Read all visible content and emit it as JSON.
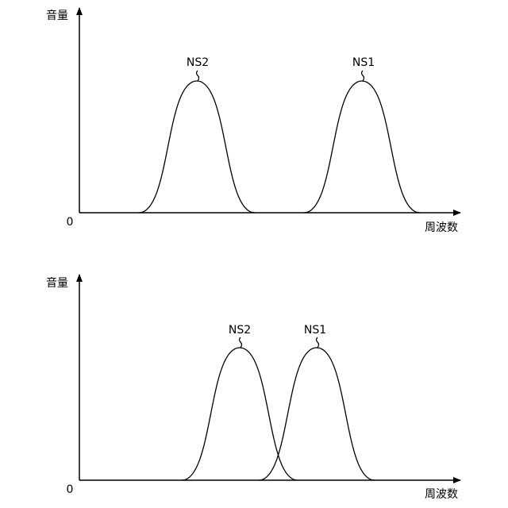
{
  "panels": [
    {
      "y_label": "音量",
      "x_label": "周波数",
      "origin": "0",
      "curves": [
        {
          "label": "NS2"
        },
        {
          "label": "NS1"
        }
      ]
    },
    {
      "y_label": "音量",
      "x_label": "周波数",
      "origin": "0",
      "curves": [
        {
          "label": "NS2"
        },
        {
          "label": "NS1"
        }
      ]
    }
  ]
}
